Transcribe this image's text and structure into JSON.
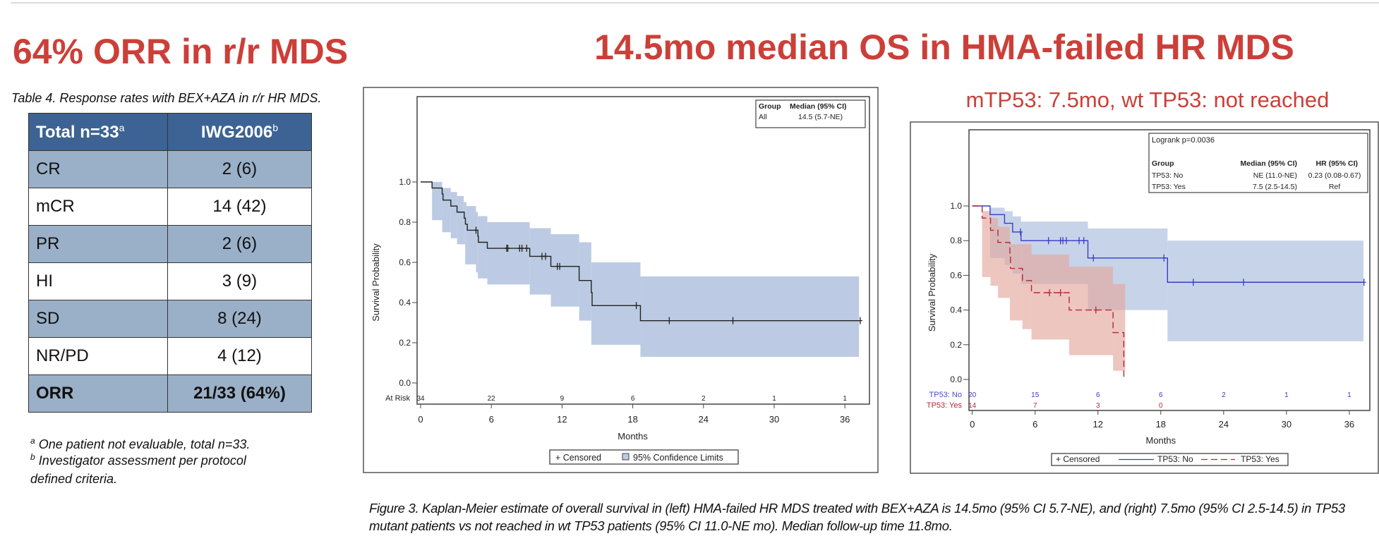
{
  "left_panel": {
    "title": "64% ORR in r/r MDS",
    "table_caption": "Table 4. Response rates with BEX+AZA in r/r HR MDS.",
    "table": {
      "headers": [
        {
          "text": "Total n=33",
          "sup": "a"
        },
        {
          "text": "IWG2006",
          "sup": "b"
        }
      ],
      "rows": [
        {
          "label": "CR",
          "value": "2 (6)"
        },
        {
          "label": "mCR",
          "value": "14 (42)"
        },
        {
          "label": "PR",
          "value": "2 (6)"
        },
        {
          "label": "HI",
          "value": "3 (9)"
        },
        {
          "label": "SD",
          "value": "8 (24)"
        },
        {
          "label": "NR/PD",
          "value": "4 (12)"
        },
        {
          "label": "ORR",
          "value": "21/33 (64%)"
        }
      ],
      "header_color": "#3c6393",
      "shade_color": "#9ab0c8"
    },
    "footnotes": [
      {
        "sup": "a",
        "text": "One patient not evaluable, total n=33."
      },
      {
        "sup": "b",
        "text": "Investigator assessment per protocol"
      },
      {
        "sup": "",
        "text": "defined criteria."
      }
    ]
  },
  "main_title": "14.5mo median OS in HMA-failed HR MDS",
  "sub_title": "mTP53: 7.5mo, wt TP53: not reached",
  "figure_caption": "Figure 3. Kaplan-Meier estimate of overall survival in (left) HMA-failed HR MDS treated with BEX+AZA is 14.5mo (95% CI 5.7-NE), and (right) 7.5mo (95% CI 2.5-14.5) in TP53 mutant patients vs not reached in wt TP53 patients (95% CI 11.0-NE mo). Median follow-up time 11.8mo.",
  "title_color": "#cc3f39",
  "chart_data": [
    {
      "type": "line",
      "subtype": "kaplan-meier step",
      "xlabel": "Months",
      "ylabel": "Survival Probability",
      "xlim": [
        0,
        36
      ],
      "ylim": [
        0,
        1
      ],
      "xticks": [
        "0",
        "6",
        "12",
        "18",
        "24",
        "30",
        "36"
      ],
      "yticks": [
        "0.0",
        "0.2",
        "0.4",
        "0.6",
        "0.8",
        "1.0"
      ],
      "grid": false,
      "inset_table": {
        "headers": [
          "Group",
          "Median (95% CI)"
        ],
        "rows": [
          [
            "All",
            "14.5 (5.7-NE)"
          ]
        ],
        "placement": "top-right"
      },
      "at_risk": {
        "label": "At Risk",
        "rows": [
          {
            "values": [
              "34",
              "22",
              "9",
              "6",
              "2",
              "1",
              "1"
            ]
          }
        ]
      },
      "legend": {
        "placement": "bottom",
        "items": [
          "+ Censored",
          "95% Confidence Limits"
        ]
      },
      "series": [
        {
          "color": "#222222",
          "band_color": "#bccbe3",
          "dashed": false,
          "steps": [
            [
              0,
              1.0
            ],
            [
              0.97,
              0.97
            ],
            [
              1.83,
              0.94
            ],
            [
              1.9,
              0.91
            ],
            [
              2.56,
              0.88
            ],
            [
              3.09,
              0.85
            ],
            [
              3.7,
              0.82
            ],
            [
              3.8,
              0.79
            ],
            [
              3.96,
              0.76
            ],
            [
              4.86,
              0.73
            ],
            [
              4.9,
              0.7
            ],
            [
              5.66,
              0.67
            ],
            [
              9.26,
              0.63
            ],
            [
              11.05,
              0.58
            ],
            [
              13.45,
              0.51
            ],
            [
              14.48,
              0.45
            ],
            [
              14.55,
              0.385
            ],
            [
              18.65,
              0.31
            ]
          ],
          "end": 37.3,
          "censored": [
            4.7,
            7.3,
            7.4,
            8.4,
            8.6,
            9.0,
            10.3,
            10.6,
            11.6,
            11.8,
            18.3,
            21.1,
            26.5,
            37.3
          ],
          "ci": [
            [
              0.97,
              0.81,
              1.0
            ],
            [
              1.83,
              0.75,
              0.97
            ],
            [
              2.56,
              0.72,
              0.95
            ],
            [
              3.09,
              0.69,
              0.93
            ],
            [
              3.66,
              0.69,
              0.9
            ],
            [
              3.78,
              0.59,
              0.9
            ],
            [
              3.89,
              0.59,
              0.88
            ],
            [
              4.7,
              0.55,
              0.85
            ],
            [
              4.86,
              0.52,
              0.83
            ],
            [
              5.66,
              0.49,
              0.8
            ],
            [
              9.26,
              0.44,
              0.77
            ],
            [
              11.05,
              0.38,
              0.74
            ],
            [
              13.45,
              0.31,
              0.7
            ],
            [
              14.48,
              0.19,
              0.6
            ],
            [
              18.65,
              0.13,
              0.53
            ]
          ],
          "ci_end": 37.2
        }
      ]
    },
    {
      "type": "line",
      "subtype": "kaplan-meier step",
      "xlabel": "Months",
      "ylabel": "Survival Probability",
      "xlim": [
        0,
        36
      ],
      "ylim": [
        0,
        1
      ],
      "xticks": [
        "0",
        "6",
        "12",
        "18",
        "24",
        "30",
        "36"
      ],
      "yticks": [
        "0.0",
        "0.2",
        "0.4",
        "0.6",
        "0.8",
        "1.0"
      ],
      "grid": false,
      "inset_table": {
        "title": "Logrank  p=0.0036",
        "headers": [
          "Group",
          "Median (95% CI)",
          "HR (95% CI)"
        ],
        "rows": [
          [
            "TP53: No",
            "NE (11.0-NE)",
            "0.23 (0.08-0.67)"
          ],
          [
            "TP53: Yes",
            "7.5 (2.5-14.5)",
            "Ref"
          ]
        ],
        "placement": "top-right"
      },
      "at_risk": {
        "rows": [
          {
            "label": "TP53: No",
            "values": [
              "20",
              "15",
              "6",
              "6",
              "2",
              "1",
              "1"
            ]
          },
          {
            "label": "TP53: Yes",
            "values": [
              "14",
              "7",
              "3",
              "0"
            ]
          }
        ]
      },
      "legend": {
        "placement": "bottom",
        "items": [
          "+ Censored",
          "TP53: No",
          "TP53: Yes"
        ]
      },
      "series": [
        {
          "name": "TP53: No",
          "color": "#3a3acc",
          "band_color": "#a9bbdb",
          "dashed": false,
          "steps": [
            [
              0,
              1.0
            ],
            [
              1.7,
              0.95
            ],
            [
              3.08,
              0.9
            ],
            [
              3.85,
              0.85
            ],
            [
              4.65,
              0.8
            ],
            [
              11.04,
              0.7
            ],
            [
              18.64,
              0.56
            ]
          ],
          "end": 37.4,
          "censored": [
            4.6,
            7.28,
            8.42,
            8.65,
            8.98,
            10.2,
            10.65,
            11.56,
            18.3,
            21.1,
            25.9,
            37.4
          ],
          "ci": [
            [
              1.7,
              0.7,
              0.99
            ],
            [
              3.08,
              0.66,
              0.97
            ],
            [
              3.85,
              0.61,
              0.94
            ],
            [
              4.65,
              0.55,
              0.91
            ],
            [
              11.04,
              0.4,
              0.87
            ],
            [
              18.64,
              0.22,
              0.8
            ]
          ],
          "ci_end": 37.35
        },
        {
          "name": "TP53: Yes",
          "color": "#b02a35",
          "band_color": "#e3a89e",
          "dashed": true,
          "steps": [
            [
              0,
              1.0
            ],
            [
              0.94,
              0.93
            ],
            [
              1.74,
              0.86
            ],
            [
              2.45,
              0.79
            ],
            [
              3.59,
              0.71
            ],
            [
              3.65,
              0.64
            ],
            [
              4.79,
              0.57
            ],
            [
              5.65,
              0.5
            ],
            [
              9.25,
              0.4
            ],
            [
              13.44,
              0.27
            ],
            [
              14.47,
              0.0
            ]
          ],
          "end": 14.47,
          "censored": [
            7.37,
            8.42,
            11.8
          ],
          "ci": [
            [
              0.94,
              0.59,
              0.97
            ],
            [
              1.74,
              0.54,
              0.93
            ],
            [
              2.45,
              0.47,
              0.88
            ],
            [
              3.59,
              0.34,
              0.78
            ],
            [
              4.79,
              0.29,
              0.78
            ],
            [
              5.65,
              0.23,
              0.72
            ],
            [
              9.25,
              0.14,
              0.65
            ],
            [
              13.44,
              0.05,
              0.55
            ]
          ],
          "ci_end": 14.6
        }
      ]
    }
  ]
}
